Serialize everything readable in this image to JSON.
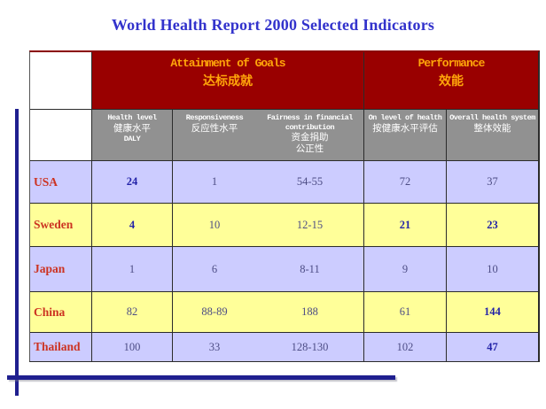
{
  "title": "World Health Report 2000 Selected Indicators",
  "table": {
    "group_headers": [
      {
        "en": "Attainment of Goals",
        "zh": "达标成就"
      },
      {
        "en": "Performance",
        "zh": "效能"
      }
    ],
    "column_headers": [
      {
        "en": "Health level",
        "zh": "健康水平",
        "zh2": "",
        "sub": "DALY"
      },
      {
        "en": "Responsiveness",
        "zh": "反应性水平",
        "zh2": "",
        "sub": ""
      },
      {
        "en": "Fairness in financial contribution",
        "zh": "资金捐助",
        "zh2": "公正性",
        "sub": ""
      },
      {
        "en": "On level of health",
        "zh": "按健康水平评估",
        "zh2": "",
        "sub": ""
      },
      {
        "en": "Overall health system",
        "zh": "整体效能",
        "zh2": "",
        "sub": ""
      }
    ],
    "rows": [
      {
        "country": "USA",
        "values": [
          "24",
          "1",
          "54-55",
          "72",
          "37"
        ],
        "bold": [
          true,
          false,
          false,
          false,
          false
        ]
      },
      {
        "country": "Sweden",
        "values": [
          "4",
          "10",
          "12-15",
          "21",
          "23"
        ],
        "bold": [
          true,
          false,
          false,
          true,
          true
        ]
      },
      {
        "country": "Japan",
        "values": [
          "1",
          "6",
          "8-11",
          "9",
          "10"
        ],
        "bold": [
          false,
          false,
          false,
          false,
          false
        ]
      },
      {
        "country": "China",
        "values": [
          "82",
          "88-89",
          "188",
          "61",
          "144"
        ],
        "bold": [
          false,
          false,
          false,
          false,
          true
        ]
      },
      {
        "country": "Thailand",
        "values": [
          "100",
          "33",
          "128-130",
          "102",
          "47"
        ],
        "bold": [
          false,
          false,
          false,
          false,
          true
        ]
      }
    ]
  },
  "colors": {
    "title_text": "#3333cc",
    "group_header_bg": "#990000",
    "group_header_text": "#ffa60a",
    "column_header_bg": "#919191",
    "column_header_text": "#ffffff",
    "row_lavender": "#ccccff",
    "row_yellow": "#ffff99",
    "country_text": "#cc3322",
    "value_text": "#4d4d85",
    "value_bold_text": "#2323a8",
    "accent_line": "#1f1f8f"
  }
}
